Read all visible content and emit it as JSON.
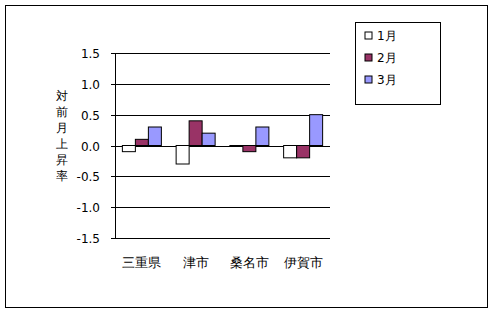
{
  "chart_data": {
    "type": "bar",
    "y_label": "対前月上昇率",
    "categories": [
      "三重県",
      "津市",
      "桑名市",
      "伊賀市"
    ],
    "series": [
      {
        "name": "1月",
        "color": "#ffffff",
        "values": [
          -0.1,
          -0.3,
          0.0,
          -0.2
        ]
      },
      {
        "name": "2月",
        "color": "#993366",
        "values": [
          0.1,
          0.4,
          -0.1,
          -0.2
        ]
      },
      {
        "name": "3月",
        "color": "#9999ff",
        "values": [
          0.3,
          0.2,
          0.3,
          0.5
        ]
      }
    ],
    "ylim": [
      -1.5,
      1.5
    ],
    "yticks": [
      {
        "value": -1.5,
        "label": "-1.5"
      },
      {
        "value": -1.0,
        "label": "-1.0"
      },
      {
        "value": -0.5,
        "label": "-0.5"
      },
      {
        "value": 0,
        "label": "0.0"
      },
      {
        "value": 0.5,
        "label": "0.5"
      },
      {
        "value": 1.0,
        "label": "1.0"
      },
      {
        "value": 1.5,
        "label": "1.5"
      }
    ],
    "grid": true,
    "legend": "right"
  }
}
